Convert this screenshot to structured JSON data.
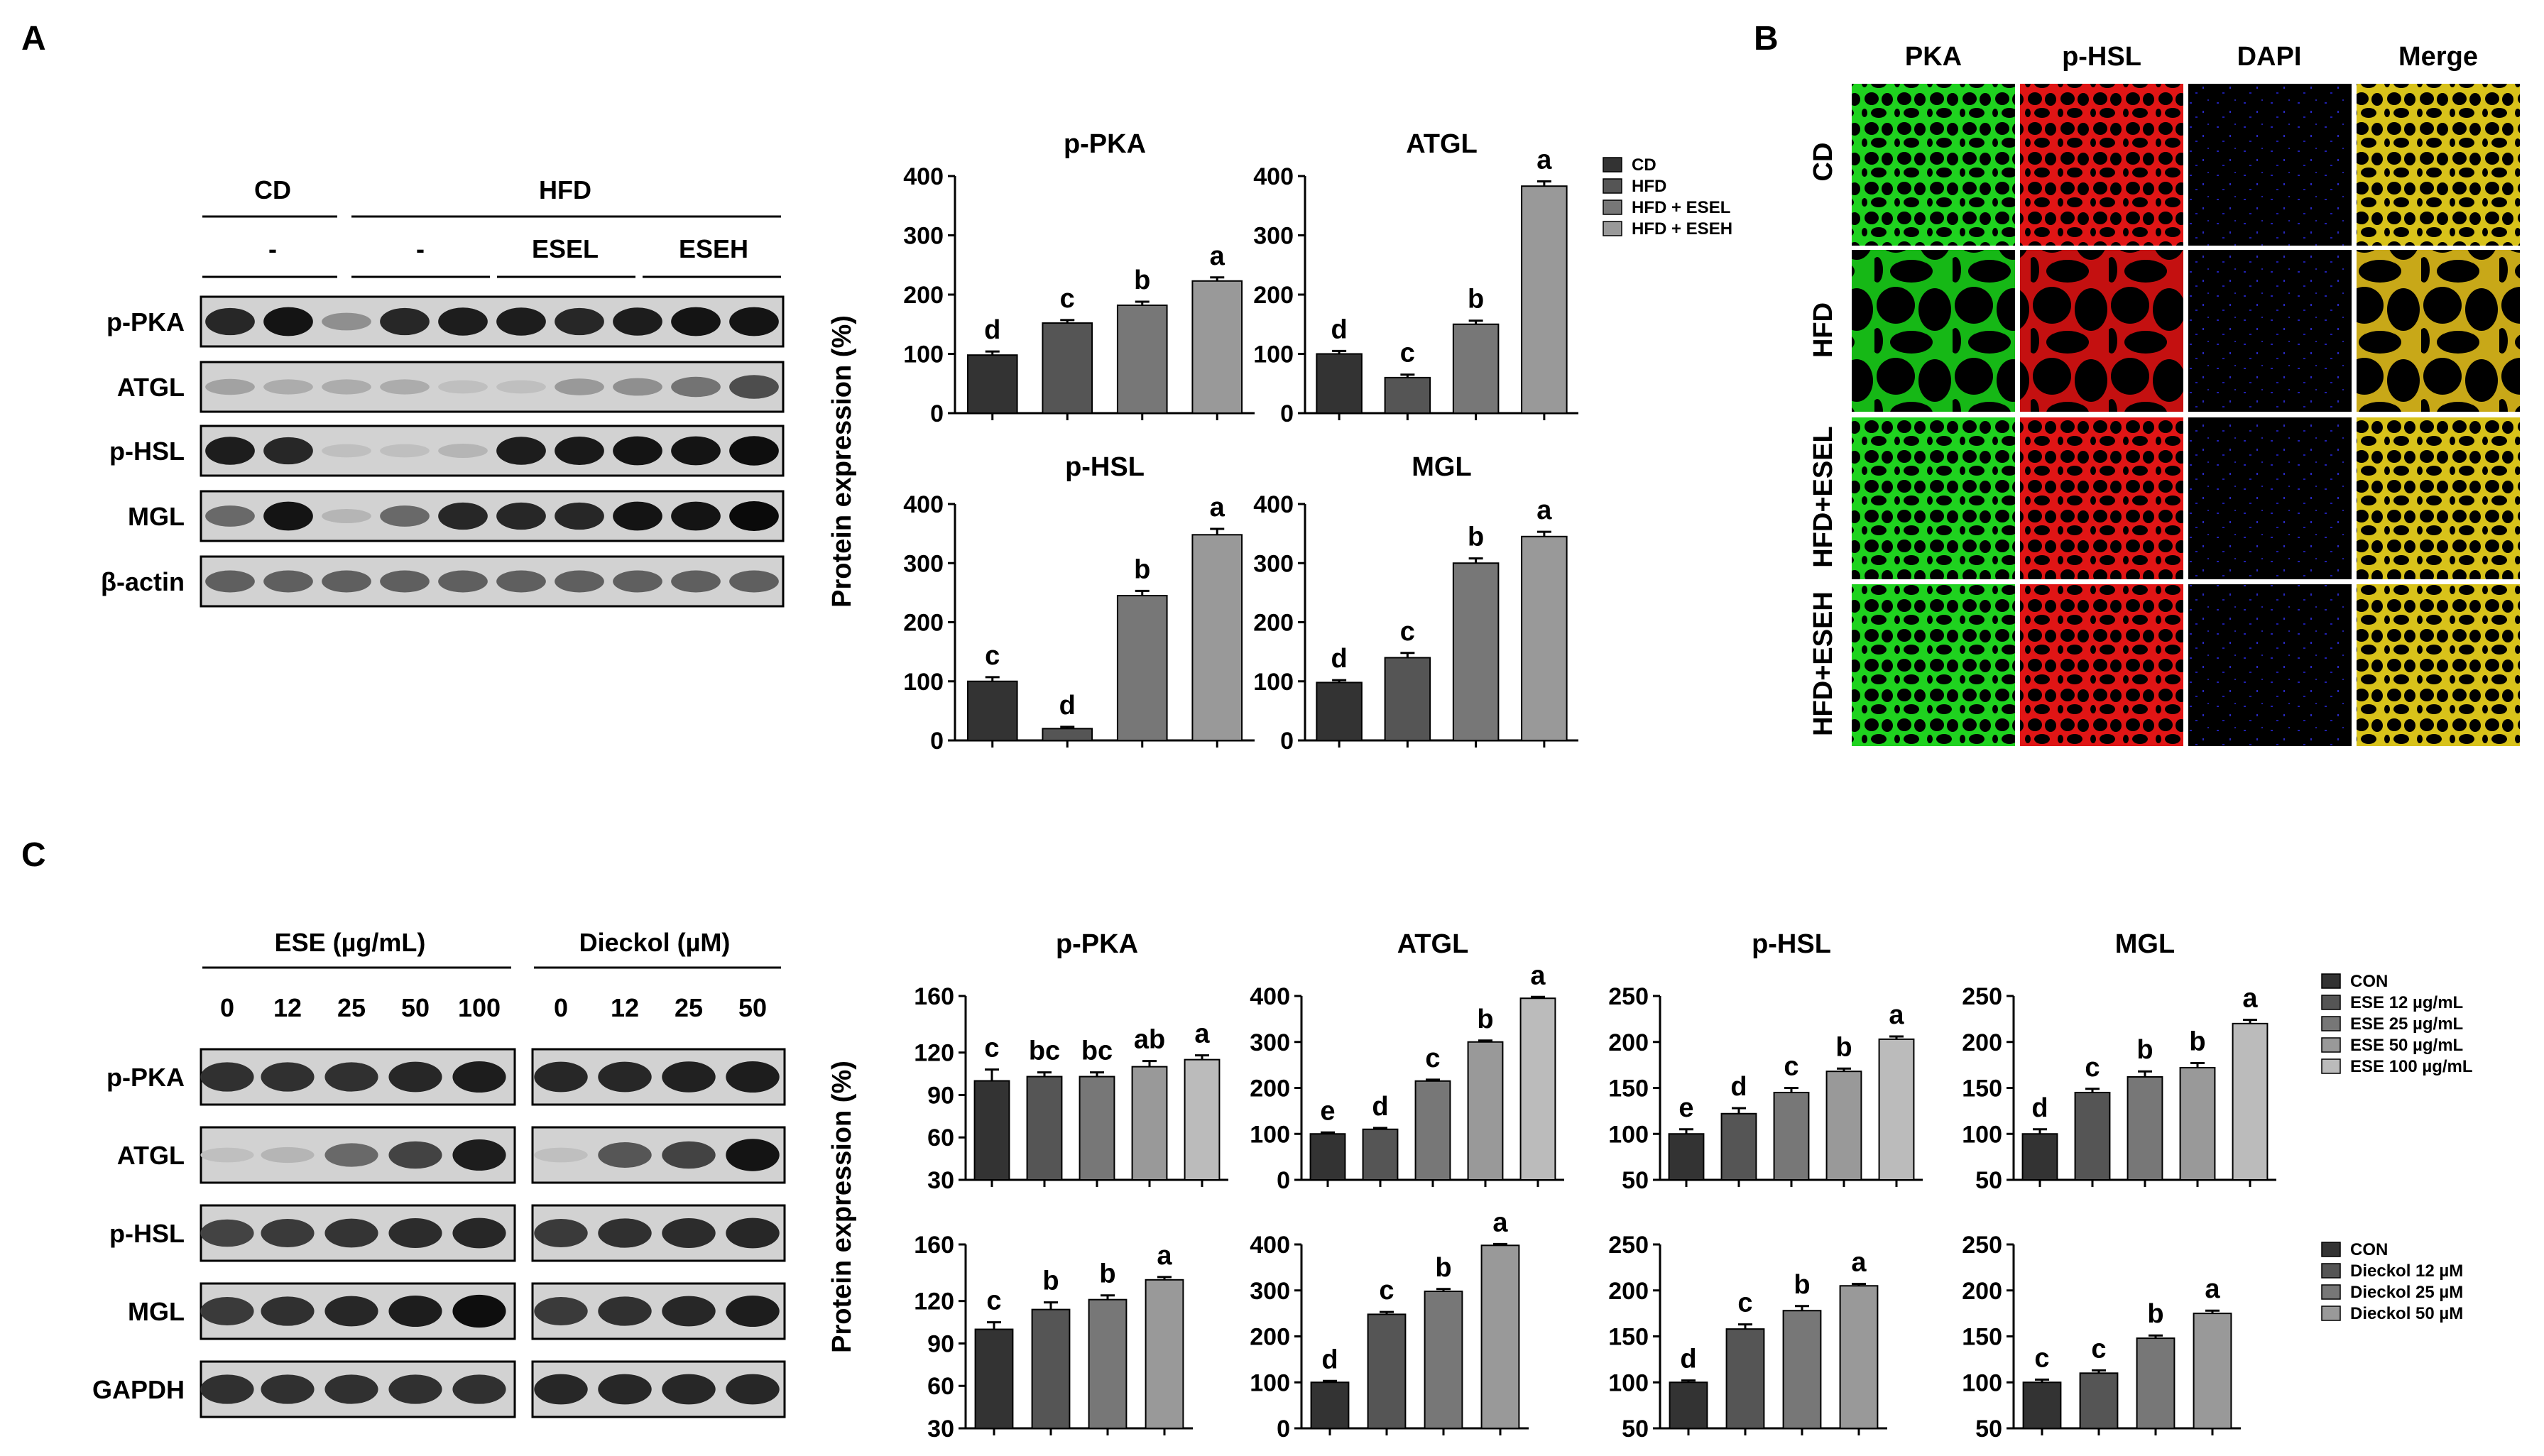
{
  "panels": {
    "A": {
      "label": "A",
      "blot": {
        "groups": [
          {
            "name": "CD",
            "sub": [
              {
                "name": "-",
                "lanes": 3
              }
            ]
          },
          {
            "name": "HFD",
            "sub": [
              {
                "name": "-",
                "lanes": 3
              },
              {
                "name": "ESEL",
                "lanes": 2
              },
              {
                "name": "ESEH",
                "lanes": 2
              }
            ]
          }
        ],
        "rows": [
          "p-PKA",
          "ATGL",
          "p-HSL",
          "MGL",
          "β-actin"
        ]
      },
      "ylabel": "Protein expression (%)",
      "legend": [
        "CD",
        "HFD",
        "HFD + ESEL",
        "HFD + ESEH"
      ]
    },
    "B": {
      "label": "B",
      "columns": [
        "PKA",
        "p-HSL",
        "DAPI",
        "Merge"
      ],
      "rows": [
        "CD",
        "HFD",
        "HFD+ESEL",
        "HFD+ESEH"
      ]
    },
    "C": {
      "label": "C",
      "blot_groups": [
        {
          "name": "ESE (µg/mL)",
          "lanes": [
            "0",
            "12",
            "25",
            "50",
            "100"
          ]
        },
        {
          "name": "Dieckol (µM)",
          "lanes": [
            "0",
            "12",
            "25",
            "50"
          ]
        }
      ],
      "blot_rows": [
        "p-PKA",
        "ATGL",
        "p-HSL",
        "MGL",
        "GAPDH"
      ],
      "ylabel": "Protein expression (%)",
      "legend_top": [
        "CON",
        "ESE 12 µg/mL",
        "ESE 25 µg/mL",
        "ESE 50 µg/mL",
        "ESE 100 µg/mL"
      ],
      "legend_bottom": [
        "CON",
        "Dieckol 12 µM",
        "Dieckol 25 µM",
        "Dieckol 50 µM"
      ]
    }
  },
  "colors": {
    "bars": [
      "#333333",
      "#555555",
      "#777777",
      "#999999",
      "#bbbbbb"
    ],
    "pka_green": "#1fd21f",
    "hsl_red": "#e01515",
    "dapi_blue": "#1818a0",
    "merge_yellow": "#d8c21a"
  },
  "chart_data": [
    {
      "type": "bar",
      "title": "p-PKA",
      "ylim": [
        0,
        400
      ],
      "yticks": [
        "0",
        "100",
        "200",
        "300",
        "400"
      ],
      "values": [
        98,
        152,
        182,
        223
      ],
      "errors": [
        6,
        5,
        6,
        6
      ],
      "letters": [
        "d",
        "c",
        "b",
        "a"
      ]
    },
    {
      "type": "bar",
      "title": "ATGL",
      "ylim": [
        0,
        400
      ],
      "yticks": [
        "0",
        "100",
        "200",
        "300",
        "400"
      ],
      "values": [
        100,
        60,
        150,
        383
      ],
      "errors": [
        5,
        5,
        6,
        8
      ],
      "letters": [
        "d",
        "c",
        "b",
        "a"
      ]
    },
    {
      "type": "bar",
      "title": "p-HSL",
      "ylim": [
        0,
        400
      ],
      "yticks": [
        "0",
        "100",
        "200",
        "300",
        "400"
      ],
      "values": [
        100,
        20,
        245,
        348
      ],
      "errors": [
        7,
        3,
        8,
        10
      ],
      "letters": [
        "c",
        "d",
        "b",
        "a"
      ]
    },
    {
      "type": "bar",
      "title": "MGL",
      "ylim": [
        0,
        400
      ],
      "yticks": [
        "0",
        "100",
        "200",
        "300",
        "400"
      ],
      "values": [
        98,
        140,
        300,
        345
      ],
      "errors": [
        4,
        8,
        8,
        8
      ],
      "letters": [
        "d",
        "c",
        "b",
        "a"
      ]
    },
    {
      "type": "bar",
      "title": "p-PKA",
      "ylim": [
        30,
        160
      ],
      "yticks": [
        "30",
        "60",
        "90",
        "120",
        "160"
      ],
      "values": [
        100,
        103,
        103,
        110,
        115
      ],
      "errors": [
        8,
        3,
        3,
        4,
        3
      ],
      "letters": [
        "c",
        "bc",
        "bc",
        "ab",
        "a"
      ]
    },
    {
      "type": "bar",
      "title": "ATGL",
      "ylim": [
        0,
        400
      ],
      "yticks": [
        "0",
        "100",
        "200",
        "300",
        "400"
      ],
      "values": [
        100,
        110,
        215,
        300,
        395
      ],
      "errors": [
        3,
        3,
        3,
        3,
        3
      ],
      "letters": [
        "e",
        "d",
        "c",
        "b",
        "a"
      ]
    },
    {
      "type": "bar",
      "title": "p-HSL",
      "ylim": [
        50,
        250
      ],
      "yticks": [
        "50",
        "100",
        "150",
        "200",
        "250"
      ],
      "values": [
        100,
        122,
        145,
        168,
        203
      ],
      "errors": [
        5,
        6,
        5,
        3,
        3
      ],
      "letters": [
        "e",
        "d",
        "c",
        "b",
        "a"
      ]
    },
    {
      "type": "bar",
      "title": "MGL",
      "ylim": [
        50,
        250
      ],
      "yticks": [
        "50",
        "100",
        "150",
        "200",
        "250"
      ],
      "values": [
        100,
        145,
        162,
        172,
        220
      ],
      "errors": [
        5,
        4,
        6,
        5,
        4
      ],
      "letters": [
        "d",
        "c",
        "b",
        "b",
        "a"
      ]
    },
    {
      "type": "bar",
      "title": "",
      "ylim": [
        30,
        160
      ],
      "yticks": [
        "30",
        "60",
        "90",
        "120",
        "160"
      ],
      "values": [
        100,
        114,
        121,
        135
      ],
      "errors": [
        5,
        5,
        3,
        2
      ],
      "letters": [
        "c",
        "b",
        "b",
        "a"
      ]
    },
    {
      "type": "bar",
      "title": "",
      "ylim": [
        0,
        400
      ],
      "yticks": [
        "0",
        "100",
        "200",
        "300",
        "400"
      ],
      "values": [
        100,
        248,
        298,
        398
      ],
      "errors": [
        3,
        5,
        5,
        3
      ],
      "letters": [
        "d",
        "c",
        "b",
        "a"
      ]
    },
    {
      "type": "bar",
      "title": "",
      "ylim": [
        50,
        250
      ],
      "yticks": [
        "50",
        "100",
        "150",
        "200",
        "250"
      ],
      "values": [
        100,
        158,
        178,
        205
      ],
      "errors": [
        2,
        5,
        5,
        2
      ],
      "letters": [
        "d",
        "c",
        "b",
        "a"
      ]
    },
    {
      "type": "bar",
      "title": "",
      "ylim": [
        50,
        250
      ],
      "yticks": [
        "50",
        "100",
        "150",
        "200",
        "250"
      ],
      "values": [
        100,
        110,
        148,
        175
      ],
      "errors": [
        3,
        3,
        3,
        3
      ],
      "letters": [
        "c",
        "c",
        "b",
        "a"
      ]
    }
  ]
}
